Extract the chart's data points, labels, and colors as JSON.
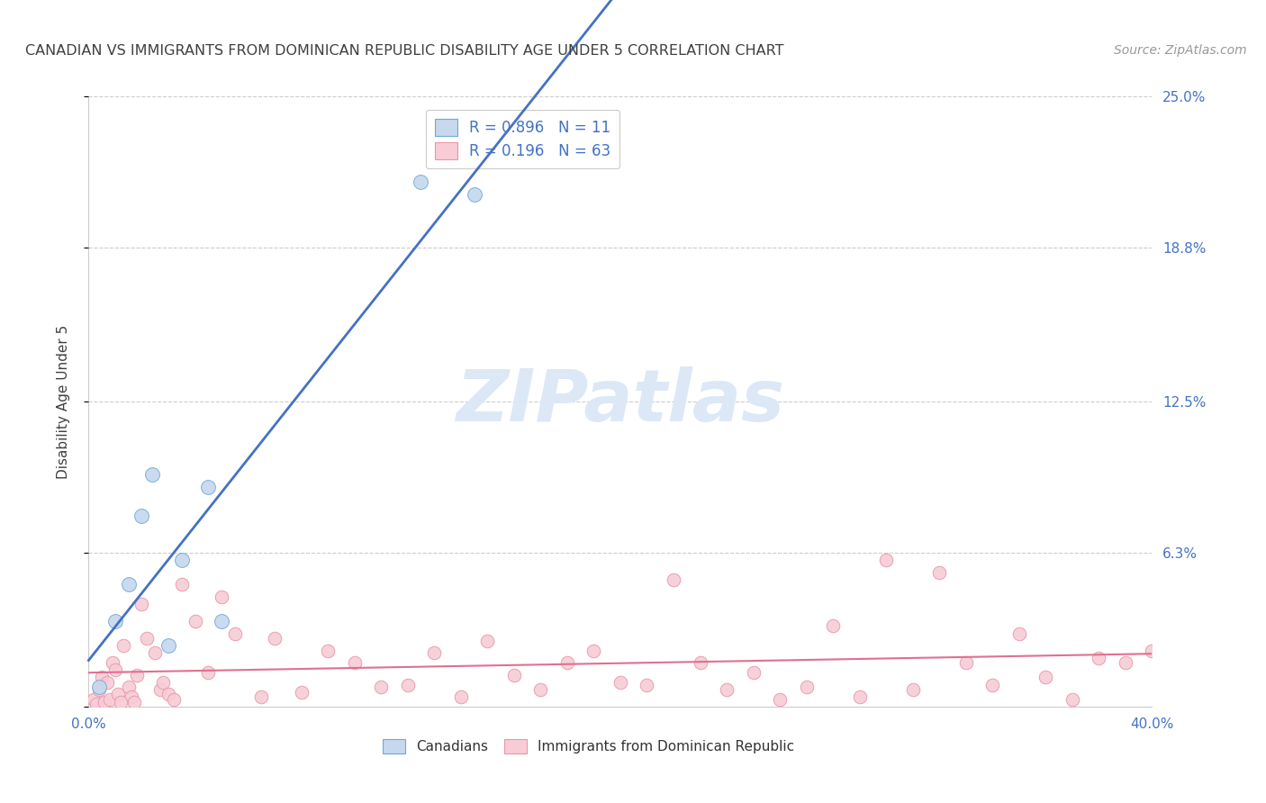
{
  "title": "CANADIAN VS IMMIGRANTS FROM DOMINICAN REPUBLIC DISABILITY AGE UNDER 5 CORRELATION CHART",
  "source": "Source: ZipAtlas.com",
  "xlim": [
    0.0,
    40.0
  ],
  "ylim": [
    0.0,
    25.0
  ],
  "xlabel_vals": [
    0.0,
    40.0
  ],
  "xlabel_ticks": [
    "0.0%",
    "40.0%"
  ],
  "ylabel_vals": [
    0.0,
    6.3,
    12.5,
    18.8,
    25.0
  ],
  "ylabel_ticks": [
    "",
    "6.3%",
    "12.5%",
    "18.8%",
    "25.0%"
  ],
  "legend_blue_R": "0.896",
  "legend_blue_N": "11",
  "legend_pink_R": "0.196",
  "legend_pink_N": "63",
  "blue_label": "Canadians",
  "pink_label": "Immigrants from Dominican Republic",
  "blue_color": "#c5d8ee",
  "blue_edge_color": "#6fa8d6",
  "blue_line_color": "#4472C4",
  "pink_color": "#f7ccd6",
  "pink_edge_color": "#e896a8",
  "pink_line_color": "#e07090",
  "title_color": "#404040",
  "source_color": "#999999",
  "axis_label_color": "#4472C4",
  "ylabel_label_color": "#404040",
  "watermark_text": "ZIPatlas",
  "watermark_color": "#dce8f5",
  "background_color": "#ffffff",
  "grid_color": "#cccccc",
  "blue_x": [
    0.4,
    1.0,
    1.5,
    2.0,
    2.4,
    3.0,
    3.5,
    4.5,
    5.0,
    12.5,
    14.5
  ],
  "blue_y": [
    0.8,
    3.5,
    5.0,
    7.8,
    9.5,
    2.5,
    6.0,
    9.0,
    3.5,
    21.5,
    21.0
  ],
  "pink_x": [
    0.2,
    0.3,
    0.4,
    0.5,
    0.6,
    0.7,
    0.8,
    0.9,
    1.0,
    1.1,
    1.3,
    1.5,
    1.6,
    1.7,
    1.8,
    2.0,
    2.2,
    2.5,
    2.7,
    2.8,
    3.0,
    3.2,
    3.5,
    4.0,
    4.5,
    5.0,
    5.5,
    6.5,
    7.0,
    8.0,
    9.0,
    10.0,
    11.0,
    12.0,
    13.0,
    14.0,
    15.0,
    16.0,
    17.0,
    18.0,
    19.0,
    20.0,
    21.0,
    22.0,
    23.0,
    24.0,
    25.0,
    26.0,
    27.0,
    28.0,
    29.0,
    30.0,
    31.0,
    32.0,
    33.0,
    34.0,
    35.0,
    36.0,
    37.0,
    38.0,
    39.0,
    40.0,
    1.2
  ],
  "pink_y": [
    0.3,
    0.1,
    0.7,
    1.2,
    0.2,
    1.0,
    0.3,
    1.8,
    1.5,
    0.5,
    2.5,
    0.8,
    0.4,
    0.2,
    1.3,
    4.2,
    2.8,
    2.2,
    0.7,
    1.0,
    0.5,
    0.3,
    5.0,
    3.5,
    1.4,
    4.5,
    3.0,
    0.4,
    2.8,
    0.6,
    2.3,
    1.8,
    0.8,
    0.9,
    2.2,
    0.4,
    2.7,
    1.3,
    0.7,
    1.8,
    2.3,
    1.0,
    0.9,
    5.2,
    1.8,
    0.7,
    1.4,
    0.3,
    0.8,
    3.3,
    0.4,
    6.0,
    0.7,
    5.5,
    1.8,
    0.9,
    3.0,
    1.2,
    0.3,
    2.0,
    1.8,
    2.3,
    0.2
  ]
}
